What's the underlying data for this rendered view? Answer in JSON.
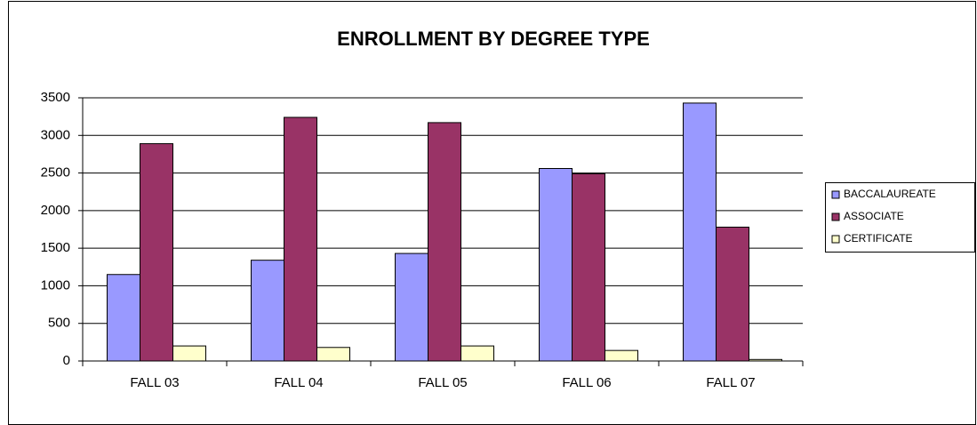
{
  "chart_data": {
    "type": "bar",
    "title": "ENROLLMENT BY DEGREE TYPE",
    "categories": [
      "FALL 03",
      "FALL 04",
      "FALL 05",
      "FALL 06",
      "FALL 07"
    ],
    "series": [
      {
        "name": "BACCALAUREATE",
        "color": "#9999ff",
        "values": [
          1150,
          1340,
          1430,
          2560,
          3430
        ]
      },
      {
        "name": "ASSOCIATE",
        "color": "#993366",
        "values": [
          2890,
          3240,
          3170,
          2490,
          1780
        ]
      },
      {
        "name": "CERTIFICATE",
        "color": "#ffffcc",
        "values": [
          200,
          180,
          200,
          140,
          20
        ]
      }
    ],
    "ylim": [
      0,
      3500
    ],
    "yticks": [
      0,
      500,
      1000,
      1500,
      2000,
      2500,
      3000,
      3500
    ],
    "grid": true,
    "legend": "right"
  }
}
